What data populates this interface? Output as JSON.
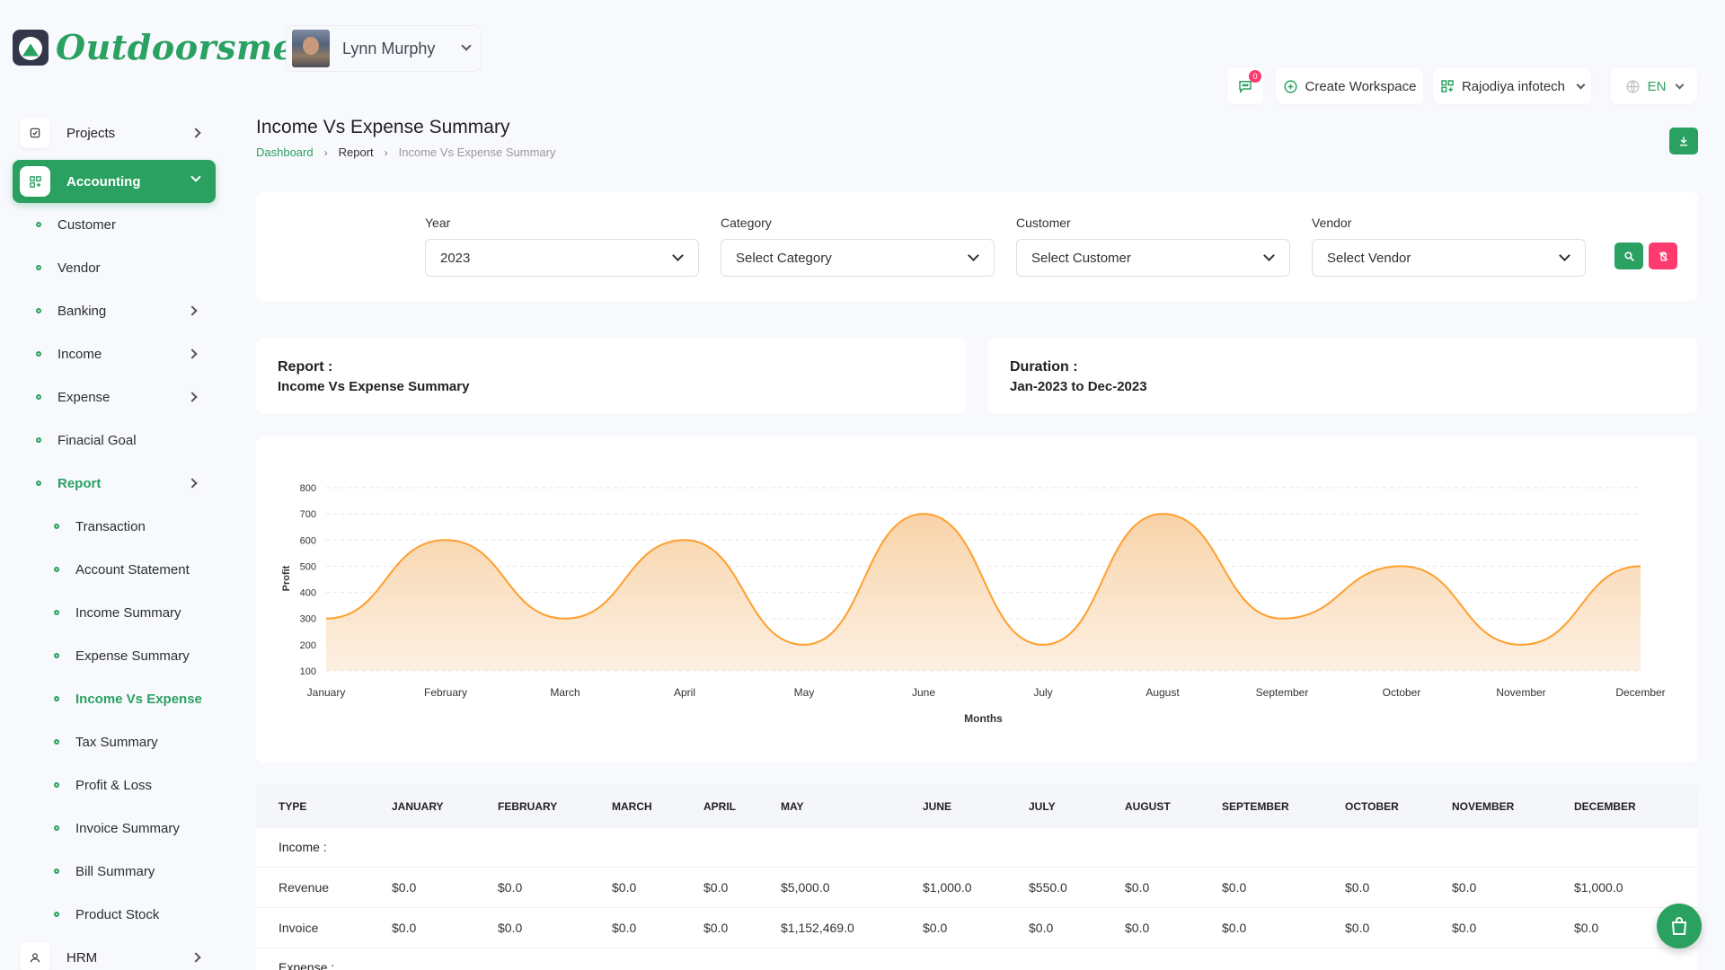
{
  "brand": {
    "name": "Outdoorsmen"
  },
  "user": {
    "name": "Lynn Murphy"
  },
  "header": {
    "message_count": "0",
    "create_workspace": "Create Workspace",
    "organization": "Rajodiya infotech",
    "language": "EN"
  },
  "sidebar": {
    "projects": "Projects",
    "accounting": "Accounting",
    "items": [
      "Customer",
      "Vendor",
      "Banking",
      "Income",
      "Expense",
      "Finacial Goal",
      "Report"
    ],
    "report_items": [
      "Transaction",
      "Account Statement",
      "Income Summary",
      "Expense Summary",
      "Income Vs Expense",
      "Tax Summary",
      "Profit & Loss",
      "Invoice Summary",
      "Bill Summary",
      "Product Stock"
    ],
    "hrm": "HRM"
  },
  "page": {
    "title": "Income Vs Expense Summary",
    "breadcrumb": [
      "Dashboard",
      "Report",
      "Income Vs Expense Summary"
    ]
  },
  "filters": {
    "year_label": "Year",
    "year_value": "2023",
    "category_label": "Category",
    "category_value": "Select Category",
    "customer_label": "Customer",
    "customer_value": "Select Customer",
    "vendor_label": "Vendor",
    "vendor_value": "Select Vendor"
  },
  "report_info": {
    "report_label": "Report :",
    "report_value": "Income Vs Expense Summary",
    "duration_label": "Duration :",
    "duration_value": "Jan-2023 to Dec-2023"
  },
  "chart_data": {
    "type": "area",
    "categories": [
      "January",
      "February",
      "March",
      "April",
      "May",
      "June",
      "July",
      "August",
      "September",
      "October",
      "November",
      "December"
    ],
    "series": [
      {
        "values": [
          300,
          600,
          300,
          600,
          200,
          700,
          200,
          700,
          300,
          500,
          200,
          500
        ]
      }
    ],
    "xlabel": "Months",
    "ylabel": "Profit",
    "ylim": [
      100,
      800
    ],
    "yticks": [
      800,
      700,
      600,
      500,
      400,
      300,
      200,
      100
    ],
    "grid": true,
    "color": "#ff9f2e"
  },
  "table": {
    "headers": [
      "TYPE",
      "JANUARY",
      "FEBRUARY",
      "MARCH",
      "APRIL",
      "MAY",
      "JUNE",
      "JULY",
      "AUGUST",
      "SEPTEMBER",
      "OCTOBER",
      "NOVEMBER",
      "DECEMBER"
    ],
    "income_label": "Income :",
    "rows": [
      [
        "Revenue",
        "$0.0",
        "$0.0",
        "$0.0",
        "$0.0",
        "$5,000.0",
        "$1,000.0",
        "$550.0",
        "$0.0",
        "$0.0",
        "$0.0",
        "$0.0",
        "$1,000.0"
      ],
      [
        "Invoice",
        "$0.0",
        "$0.0",
        "$0.0",
        "$0.0",
        "$1,152,469.0",
        "$0.0",
        "$0.0",
        "$0.0",
        "$0.0",
        "$0.0",
        "$0.0",
        "$0.0"
      ]
    ],
    "expense_label": "Expense :"
  }
}
